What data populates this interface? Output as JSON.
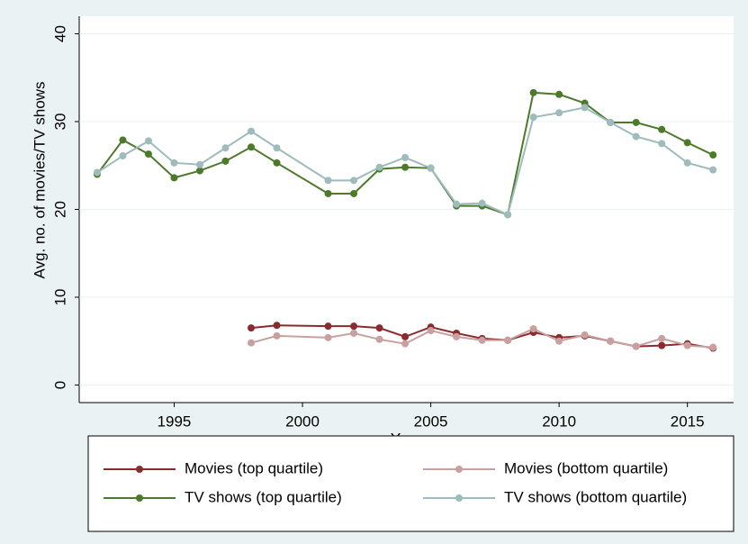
{
  "chart_data": {
    "type": "line",
    "x_label": "Year",
    "y_label": "Avg. no. of movies/TV shows",
    "x": [
      1992,
      1993,
      1994,
      1995,
      1996,
      1997,
      1998,
      1999,
      2001,
      2002,
      2003,
      2004,
      2005,
      2006,
      2007,
      2008,
      2009,
      2010,
      2011,
      2012,
      2013,
      2014,
      2015,
      2016
    ],
    "series": [
      {
        "name": "Movies (top quartile)",
        "color": "#8b2b2f",
        "values": [
          null,
          null,
          null,
          null,
          null,
          null,
          6.5,
          6.8,
          6.7,
          6.7,
          6.5,
          5.5,
          6.6,
          5.9,
          5.3,
          5.1,
          6.0,
          5.4,
          5.6,
          5.0,
          4.4,
          4.5,
          4.7,
          4.2
        ]
      },
      {
        "name": "Movies (bottom quartile)",
        "color": "#c9a0a0",
        "values": [
          null,
          null,
          null,
          null,
          null,
          null,
          4.8,
          5.6,
          5.4,
          5.9,
          5.2,
          4.7,
          6.2,
          5.5,
          5.1,
          5.1,
          6.4,
          5.0,
          5.7,
          5.0,
          4.4,
          5.3,
          4.5,
          4.3
        ]
      },
      {
        "name": "TV shows (top quartile)",
        "color": "#4d7a2a",
        "values": [
          24.0,
          27.9,
          26.3,
          23.6,
          24.4,
          25.5,
          27.1,
          25.3,
          21.8,
          21.8,
          24.6,
          24.8,
          24.7,
          20.4,
          20.4,
          19.4,
          33.3,
          33.1,
          32.1,
          29.9,
          29.9,
          29.1,
          27.6,
          26.2
        ]
      },
      {
        "name": "TV shows (bottom quartile)",
        "color": "#9dbcbb",
        "values": [
          24.2,
          26.1,
          27.8,
          25.3,
          25.1,
          27.0,
          28.9,
          27.0,
          23.3,
          23.3,
          24.8,
          25.9,
          24.7,
          20.6,
          20.7,
          19.4,
          30.5,
          31.0,
          31.6,
          29.9,
          28.3,
          27.5,
          25.3,
          24.5
        ]
      }
    ],
    "xlim": [
      1991.3,
      2016.8
    ],
    "xticks": [
      1995,
      2000,
      2005,
      2010,
      2015
    ],
    "ylim": [
      -2,
      42
    ],
    "yticks": [
      0,
      10,
      20,
      30,
      40
    ],
    "grid": true,
    "legend": "bottom"
  }
}
